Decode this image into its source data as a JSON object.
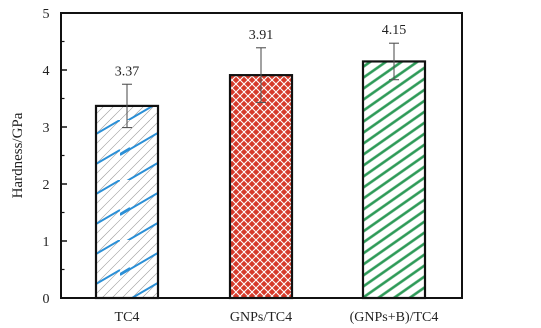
{
  "chart_data": {
    "type": "bar",
    "title": "",
    "xlabel": "",
    "ylabel": "Hardness/GPa",
    "ylim": [
      0,
      5
    ],
    "yticks": [
      0,
      1,
      2,
      3,
      4,
      5
    ],
    "grid": false,
    "legend": "none",
    "categories": [
      "TC4",
      "GNPs/TC4",
      "(GNPs+B)/TC4"
    ],
    "values": [
      3.37,
      3.91,
      4.15
    ],
    "errors": [
      0.38,
      0.48,
      0.32
    ],
    "data_labels": [
      "3.37",
      "3.91",
      "4.15"
    ],
    "colors": [
      "#2a8fd6",
      "#d63a2a",
      "#2e9a58"
    ],
    "patterns": [
      "diagonal-hatch",
      "crosshatch",
      "diagonal-hatch"
    ]
  }
}
